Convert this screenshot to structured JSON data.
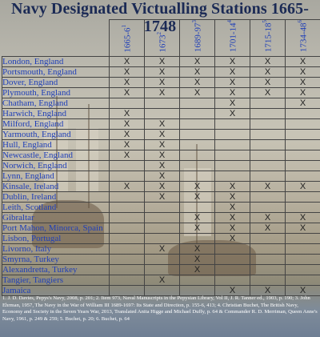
{
  "title": "Navy Designated Victualling Stations 1665-1748",
  "periods": [
    {
      "label": "1665-6",
      "ref": "1"
    },
    {
      "label": "1673",
      "ref": "2"
    },
    {
      "label": "1689-97",
      "ref": "3"
    },
    {
      "label": "1701-14",
      "ref": "4"
    },
    {
      "label": "1715-18",
      "ref": "5"
    },
    {
      "label": "1734-48",
      "ref": "6"
    }
  ],
  "mark_symbol": "X",
  "rows": [
    {
      "name": "London, England",
      "marks": [
        1,
        1,
        1,
        1,
        1,
        1
      ]
    },
    {
      "name": "Portsmouth, England",
      "marks": [
        1,
        1,
        1,
        1,
        1,
        1
      ]
    },
    {
      "name": "Dover, England",
      "marks": [
        1,
        1,
        1,
        1,
        1,
        1
      ]
    },
    {
      "name": "Plymouth, England",
      "marks": [
        1,
        1,
        1,
        1,
        1,
        1
      ]
    },
    {
      "name": "Chatham, England",
      "marks": [
        0,
        0,
        0,
        1,
        0,
        1
      ]
    },
    {
      "name": "Harwich, England",
      "marks": [
        1,
        0,
        0,
        1,
        0,
        0
      ]
    },
    {
      "name": "Milford, England",
      "marks": [
        1,
        1,
        0,
        0,
        0,
        0
      ]
    },
    {
      "name": "Yarmouth, England",
      "marks": [
        1,
        1,
        0,
        0,
        0,
        0
      ]
    },
    {
      "name": "Hull, England",
      "marks": [
        1,
        1,
        0,
        0,
        0,
        0
      ]
    },
    {
      "name": "Newcastle, England",
      "marks": [
        1,
        1,
        0,
        0,
        0,
        0
      ]
    },
    {
      "name": "Norwich, England",
      "marks": [
        0,
        1,
        0,
        0,
        0,
        0
      ]
    },
    {
      "name": "Lynn, England",
      "marks": [
        0,
        1,
        0,
        0,
        0,
        0
      ]
    },
    {
      "name": "Kinsale, Ireland",
      "marks": [
        1,
        1,
        1,
        1,
        1,
        1
      ]
    },
    {
      "name": "Dublin, Ireland",
      "marks": [
        0,
        1,
        1,
        1,
        0,
        0
      ]
    },
    {
      "name": "Leith, Scotland",
      "marks": [
        0,
        0,
        0,
        1,
        0,
        0
      ]
    },
    {
      "name": "Gibraltar",
      "marks": [
        0,
        0,
        1,
        1,
        1,
        1
      ]
    },
    {
      "name": "Port Mahon, Minorca, Spain",
      "marks": [
        0,
        0,
        1,
        1,
        1,
        1
      ]
    },
    {
      "name": "Lisbon, Portugal",
      "marks": [
        0,
        0,
        0,
        1,
        0,
        0
      ]
    },
    {
      "name": "Livorno, Italy",
      "marks": [
        0,
        1,
        1,
        0,
        0,
        0
      ]
    },
    {
      "name": "Smyrna, Turkey",
      "marks": [
        0,
        0,
        1,
        0,
        0,
        0
      ]
    },
    {
      "name": "Alexandretta, Turkey",
      "marks": [
        0,
        0,
        1,
        0,
        0,
        0
      ]
    },
    {
      "name": "Tangier, Tangiers",
      "marks": [
        0,
        1,
        0,
        0,
        0,
        0
      ]
    },
    {
      "name": "Jamaica",
      "marks": [
        0,
        0,
        0,
        1,
        1,
        1
      ]
    }
  ],
  "notes": "1. J. D. Davies, Pepys's Navy, 2008, p. 201; 2. Item 973, Naval Manuscripts in the Pepysian Library, Vol II, J. R. Tanner ed., 1903, p. 190; 3. John Ehrman, 1957, The Navy in the War of William III 1689-1697: Its State and Direction, p. 155-6, 413; 4. Christian Buchet, The British Navy, Economy and Society in the Seven Years War, 2013, Translated Anita Higge and Michael Duffy, p. 64 & Commander R. D. Merriman, Queen Anne's Navy, 1961, p. 249 & 259; 5. Buchet, p. 20; 6. Buchet, p. 64"
}
